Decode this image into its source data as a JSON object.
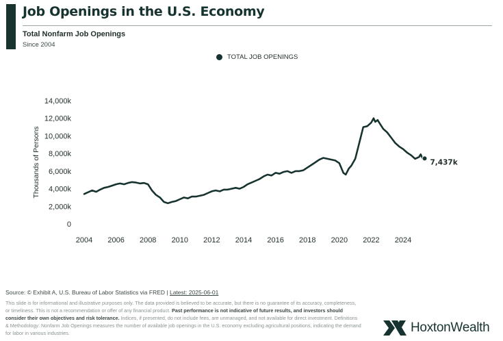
{
  "header": {
    "title": "Job Openings in the U.S. Economy",
    "subtitle": "Total Nonfarm Job Openings",
    "subtitle2": "Since 2004"
  },
  "legend": {
    "label": "TOTAL JOB OPENINGS"
  },
  "chart_data": {
    "type": "line",
    "ylabel": "Thousands of Persons",
    "xlabel": "",
    "xlim": [
      2004,
      2025.5
    ],
    "ylim": [
      0,
      14000
    ],
    "x_ticks": [
      "2004",
      "2006",
      "2008",
      "2010",
      "2012",
      "2014",
      "2016",
      "2018",
      "2020",
      "2022",
      "2024"
    ],
    "y_ticks": [
      "0",
      "2,000k",
      "4,000k",
      "6,000k",
      "8,000k",
      "10,000k",
      "12,000k",
      "14,000k"
    ],
    "series": [
      {
        "name": "TOTAL JOB OPENINGS",
        "color": "#163330",
        "x": [
          2004.0,
          2004.25,
          2004.5,
          2004.75,
          2005.0,
          2005.25,
          2005.5,
          2005.75,
          2006.0,
          2006.25,
          2006.5,
          2006.75,
          2007.0,
          2007.25,
          2007.5,
          2007.75,
          2008.0,
          2008.25,
          2008.5,
          2008.75,
          2009.0,
          2009.25,
          2009.5,
          2009.75,
          2010.0,
          2010.25,
          2010.5,
          2010.75,
          2011.0,
          2011.25,
          2011.5,
          2011.75,
          2012.0,
          2012.25,
          2012.5,
          2012.75,
          2013.0,
          2013.25,
          2013.5,
          2013.75,
          2014.0,
          2014.25,
          2014.5,
          2014.75,
          2015.0,
          2015.25,
          2015.5,
          2015.75,
          2016.0,
          2016.25,
          2016.5,
          2016.75,
          2017.0,
          2017.25,
          2017.5,
          2017.75,
          2018.0,
          2018.25,
          2018.5,
          2018.75,
          2019.0,
          2019.25,
          2019.5,
          2019.75,
          2020.0,
          2020.25,
          2020.4,
          2020.6,
          2020.75,
          2021.0,
          2021.25,
          2021.5,
          2021.75,
          2022.0,
          2022.15,
          2022.25,
          2022.4,
          2022.5,
          2022.75,
          2023.0,
          2023.25,
          2023.5,
          2023.75,
          2024.0,
          2024.25,
          2024.5,
          2024.75,
          2025.0,
          2025.1,
          2025.25,
          2025.35
        ],
        "values": [
          3400,
          3600,
          3800,
          3650,
          3900,
          4100,
          4200,
          4350,
          4500,
          4600,
          4500,
          4650,
          4750,
          4700,
          4600,
          4650,
          4500,
          3800,
          3300,
          3000,
          2500,
          2350,
          2500,
          2600,
          2800,
          3000,
          2900,
          3100,
          3100,
          3200,
          3300,
          3500,
          3700,
          3800,
          3700,
          3900,
          3900,
          4000,
          4100,
          4000,
          4200,
          4500,
          4700,
          4900,
          5100,
          5400,
          5600,
          5500,
          5800,
          5700,
          5900,
          6000,
          5800,
          6000,
          6000,
          6100,
          6400,
          6700,
          7000,
          7300,
          7500,
          7400,
          7300,
          7200,
          6900,
          5800,
          5600,
          6300,
          6600,
          7400,
          9200,
          11000,
          11100,
          11500,
          12000,
          11600,
          11800,
          11500,
          10800,
          10400,
          9800,
          9200,
          8800,
          8500,
          8100,
          7800,
          7400,
          7600,
          7900,
          7300,
          7437
        ]
      }
    ],
    "end_label": "7,437k"
  },
  "footer": {
    "source_prefix": "Source: © Exhibit A, U.S. Bureau of Labor Statistics via FRED | ",
    "source_link": "Latest: 2025-06-01",
    "disclaimer_1": "This slide is for informational and illustrative purposes only. The data provided is believed to be accurate, but there is no guarantee of its accuracy, completeness, or timeliness. This is not a recommendation or offer of any financial product. ",
    "disclaimer_bold": "Past performance is not indicative of future results, and investors should consider their own objectives and risk tolerance.",
    "disclaimer_2": " Indices, if presented, do not include fees, are unmanaged, and not available for direct investment. Definitions & Methodology: Nonfarm Job Openings measures the number of available job openings in the U.S. economy excluding agricultural positions, indicating the demand for labor in various industries.",
    "brand": "HoxtonWealth"
  }
}
